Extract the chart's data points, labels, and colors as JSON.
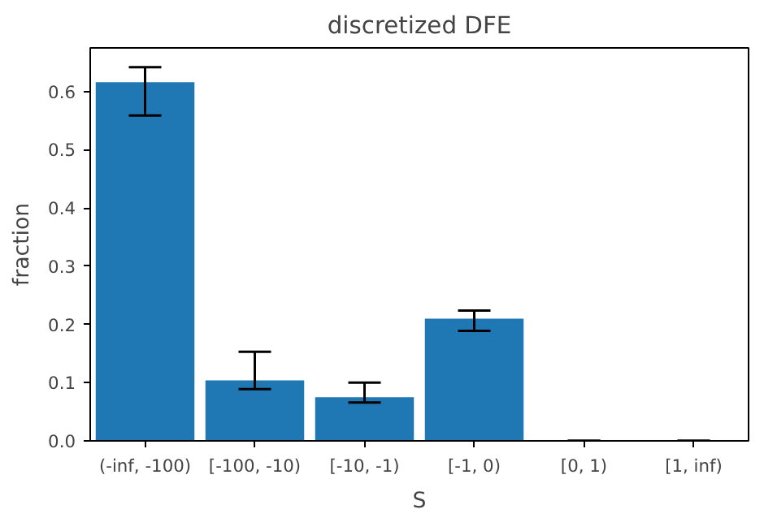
{
  "chart_data": {
    "type": "bar",
    "title": "discretized DFE",
    "xlabel": "S",
    "ylabel": "fraction",
    "categories": [
      "(-inf, -100)",
      "[-100, -10)",
      "[-10, -1)",
      "[-1, 0)",
      "[0, 1)",
      "[1, inf)"
    ],
    "values": [
      0.616,
      0.104,
      0.075,
      0.21,
      0,
      0
    ],
    "errors": [
      [
        0.559,
        0.642
      ],
      [
        0.089,
        0.153
      ],
      [
        0.066,
        0.1
      ],
      [
        0.189,
        0.224
      ],
      0,
      0
    ],
    "color": "#1f77b4",
    "ylim": [
      0,
      0.675
    ],
    "yticks": [
      {
        "value": 0,
        "label": "0.0"
      },
      0.1,
      0.2,
      0.3,
      0.4,
      0.5,
      0.6
    ],
    "grid": false
  }
}
